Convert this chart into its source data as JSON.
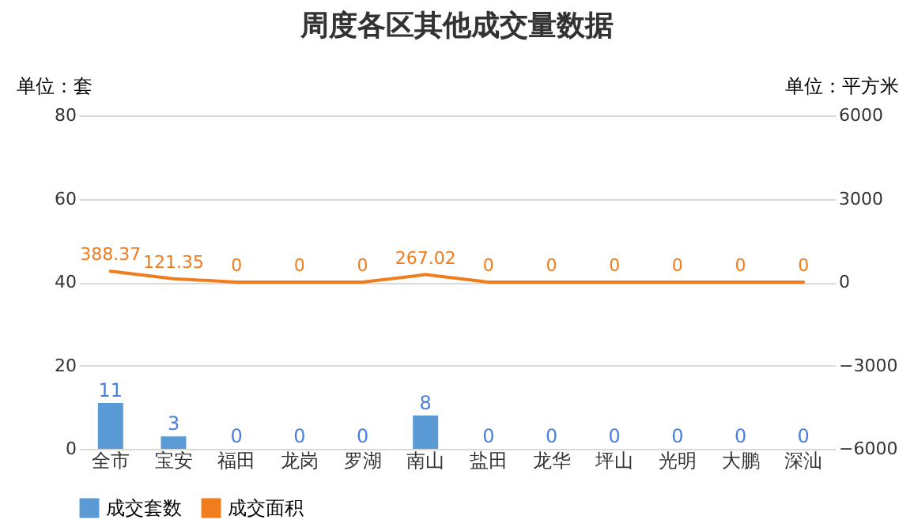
{
  "chart_data": {
    "type": "bar",
    "title": "周度各区其他成交量数据",
    "ylabel": "单位：套",
    "y2label": "单位：平方米",
    "categories": [
      "全市",
      "宝安",
      "福田",
      "龙岗",
      "罗湖",
      "南山",
      "盐田",
      "龙华",
      "坪山",
      "光明",
      "大鹏",
      "深汕"
    ],
    "series": [
      {
        "name": "成交套数",
        "color": "#5b9bd5",
        "values": [
          11,
          3,
          0,
          0,
          0,
          8,
          0,
          0,
          0,
          0,
          0,
          0
        ]
      },
      {
        "name": "成交面积",
        "type": "line",
        "axis": "y2",
        "color": "#f07c1c",
        "values": [
          388.37,
          121.35,
          0,
          0,
          0,
          267.02,
          0,
          0,
          0,
          0,
          0,
          0
        ]
      }
    ],
    "ylim": [
      0,
      80
    ],
    "yticks": [
      0,
      20,
      40,
      60,
      80
    ],
    "y2lim": [
      -6000,
      6000
    ],
    "y2ticks": [
      -6000,
      -3000,
      0,
      3000,
      6000
    ],
    "grid": "y",
    "legend": "bottom",
    "data_labels": true
  }
}
